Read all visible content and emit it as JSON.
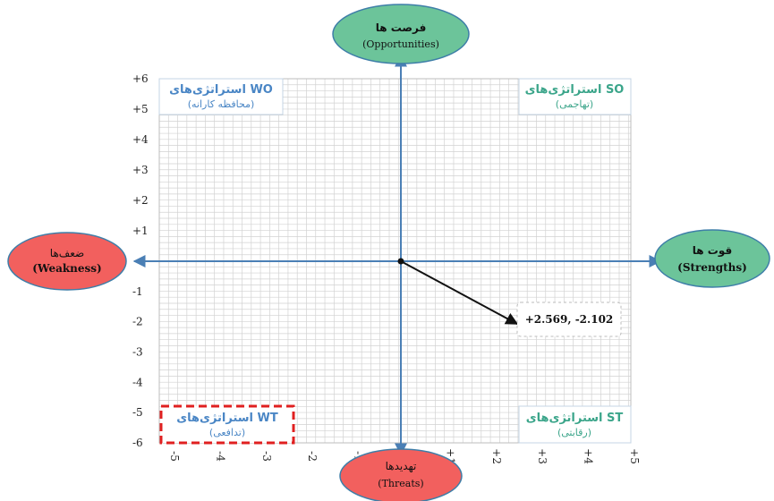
{
  "axes": {
    "y_ticks": [
      "+6",
      "+5",
      "+4",
      "+3",
      "+2",
      "+1",
      "-1",
      "-2",
      "-3",
      "-4",
      "-5",
      "-6"
    ],
    "x_ticks": [
      "-5",
      "-4",
      "-3",
      "-2",
      "-1",
      "+1",
      "+2",
      "+3",
      "+4",
      "+5"
    ]
  },
  "ovals": {
    "top": {
      "fa": "فرصت ها",
      "en": "(Opportunities)"
    },
    "bottom": {
      "fa": "تهدیدها",
      "en": "(Threats)"
    },
    "left": {
      "fa": "ضعف‌ها",
      "en": "(Weakness)"
    },
    "right": {
      "fa": "قوت ها",
      "en": "(Strengths)"
    }
  },
  "quadrants": {
    "wo": {
      "title": "استراتژی‌های WO",
      "subtitle": "(محافظه کارانه)"
    },
    "so": {
      "title": "استراتژی‌های SO",
      "subtitle": "(تهاجمی)"
    },
    "wt": {
      "title": "استراتژی‌های WT",
      "subtitle": "(تدافعی)"
    },
    "st": {
      "title": "استراتژی‌های ST",
      "subtitle": "(رقابتی)"
    }
  },
  "callout": {
    "text": "+2.569,  -2.102"
  },
  "point": {
    "x": 2.569,
    "y": -2.102
  },
  "colors": {
    "green": "#6cc49a",
    "red": "#f2605e",
    "axis": "#4a7fb5",
    "grid": "#c9c9c9",
    "quadrant_blue": "#4a86c5",
    "quadrant_green": "#3ba58a",
    "highlight_border": "#e02020"
  }
}
